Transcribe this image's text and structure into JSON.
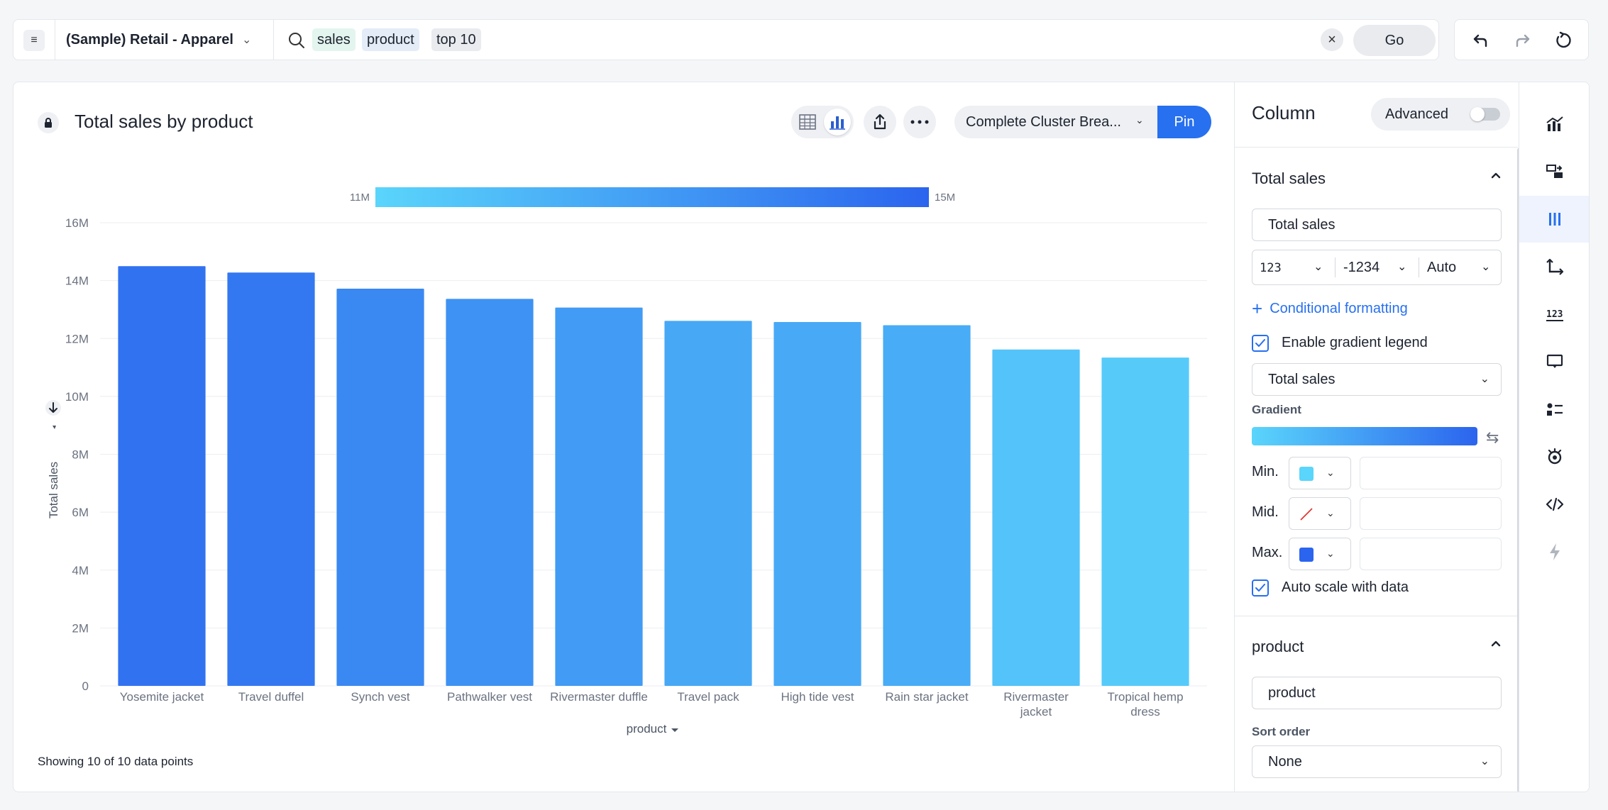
{
  "search": {
    "menu_icon": "menu-icon",
    "datasource": "(Sample) Retail - Apparel",
    "tokens": [
      "sales",
      "product",
      "top 10"
    ],
    "go_label": "Go"
  },
  "chart_header": {
    "title": "Total sales by product",
    "pinboard_select": "Complete Cluster Brea...",
    "pin_label": "Pin"
  },
  "legend": {
    "min_label": "11M",
    "max_label": "15M"
  },
  "footer": {
    "showing": "Showing 10 of 10 data points"
  },
  "chart_data": {
    "type": "bar",
    "title": "Total sales by product",
    "xlabel": "product",
    "ylabel": "Total sales",
    "categories": [
      "Yosemite jacket",
      "Travel duffel",
      "Synch vest",
      "Pathwalker vest",
      "Rivermaster duffle",
      "Travel pack",
      "High tide vest",
      "Rain star jacket",
      "Rivermaster jacket",
      "Tropical hemp dress"
    ],
    "category_lines": [
      [
        "Yosemite jacket"
      ],
      [
        "Travel duffel"
      ],
      [
        "Synch vest"
      ],
      [
        "Pathwalker vest"
      ],
      [
        "Rivermaster duffle"
      ],
      [
        "Travel pack"
      ],
      [
        "High tide vest"
      ],
      [
        "Rain star jacket"
      ],
      [
        "Rivermaster",
        "jacket"
      ],
      [
        "Tropical hemp",
        "dress"
      ]
    ],
    "values": [
      14500000,
      14280000,
      13720000,
      13370000,
      13070000,
      12610000,
      12570000,
      12460000,
      11620000,
      11340000
    ],
    "ylim": [
      0,
      16000000
    ],
    "yticks": [
      0,
      2000000,
      4000000,
      6000000,
      8000000,
      10000000,
      12000000,
      14000000,
      16000000
    ],
    "ytick_labels": [
      "0",
      "2M",
      "4M",
      "6M",
      "8M",
      "10M",
      "12M",
      "14M",
      "16M"
    ],
    "gradient": {
      "min": 11000000,
      "max": 15000000,
      "min_color": "#5ad5fb",
      "max_color": "#2b64ee"
    },
    "grid": true
  },
  "panel": {
    "title": "Column",
    "advanced_label": "Advanced",
    "advanced_on": false,
    "total_sales_section": {
      "title": "Total sales",
      "name_value": "Total sales",
      "format_category": "123",
      "format_negative": "-1234",
      "format_units": "Auto",
      "conditional_formatting": "Conditional formatting",
      "enable_gradient_legend": "Enable gradient legend",
      "gradient_column": "Total sales",
      "gradient_label": "Gradient",
      "min_label": "Min.",
      "mid_label": "Mid.",
      "max_label": "Max.",
      "min_color": "#5ad5fb",
      "max_color": "#2b64ee",
      "auto_scale": "Auto scale with data"
    },
    "product_section": {
      "title": "product",
      "name_value": "product",
      "sort_order_label": "Sort order",
      "sort_order_value": "None"
    }
  },
  "rail": [
    "chart-type-icon",
    "configure-icon",
    "column-settings-icon",
    "axes-icon",
    "number-format-icon",
    "tooltip-icon",
    "legend-icon",
    "spotter-icon",
    "embed-icon",
    "lightning-icon"
  ],
  "colors": {
    "accent": "#2770ef"
  }
}
